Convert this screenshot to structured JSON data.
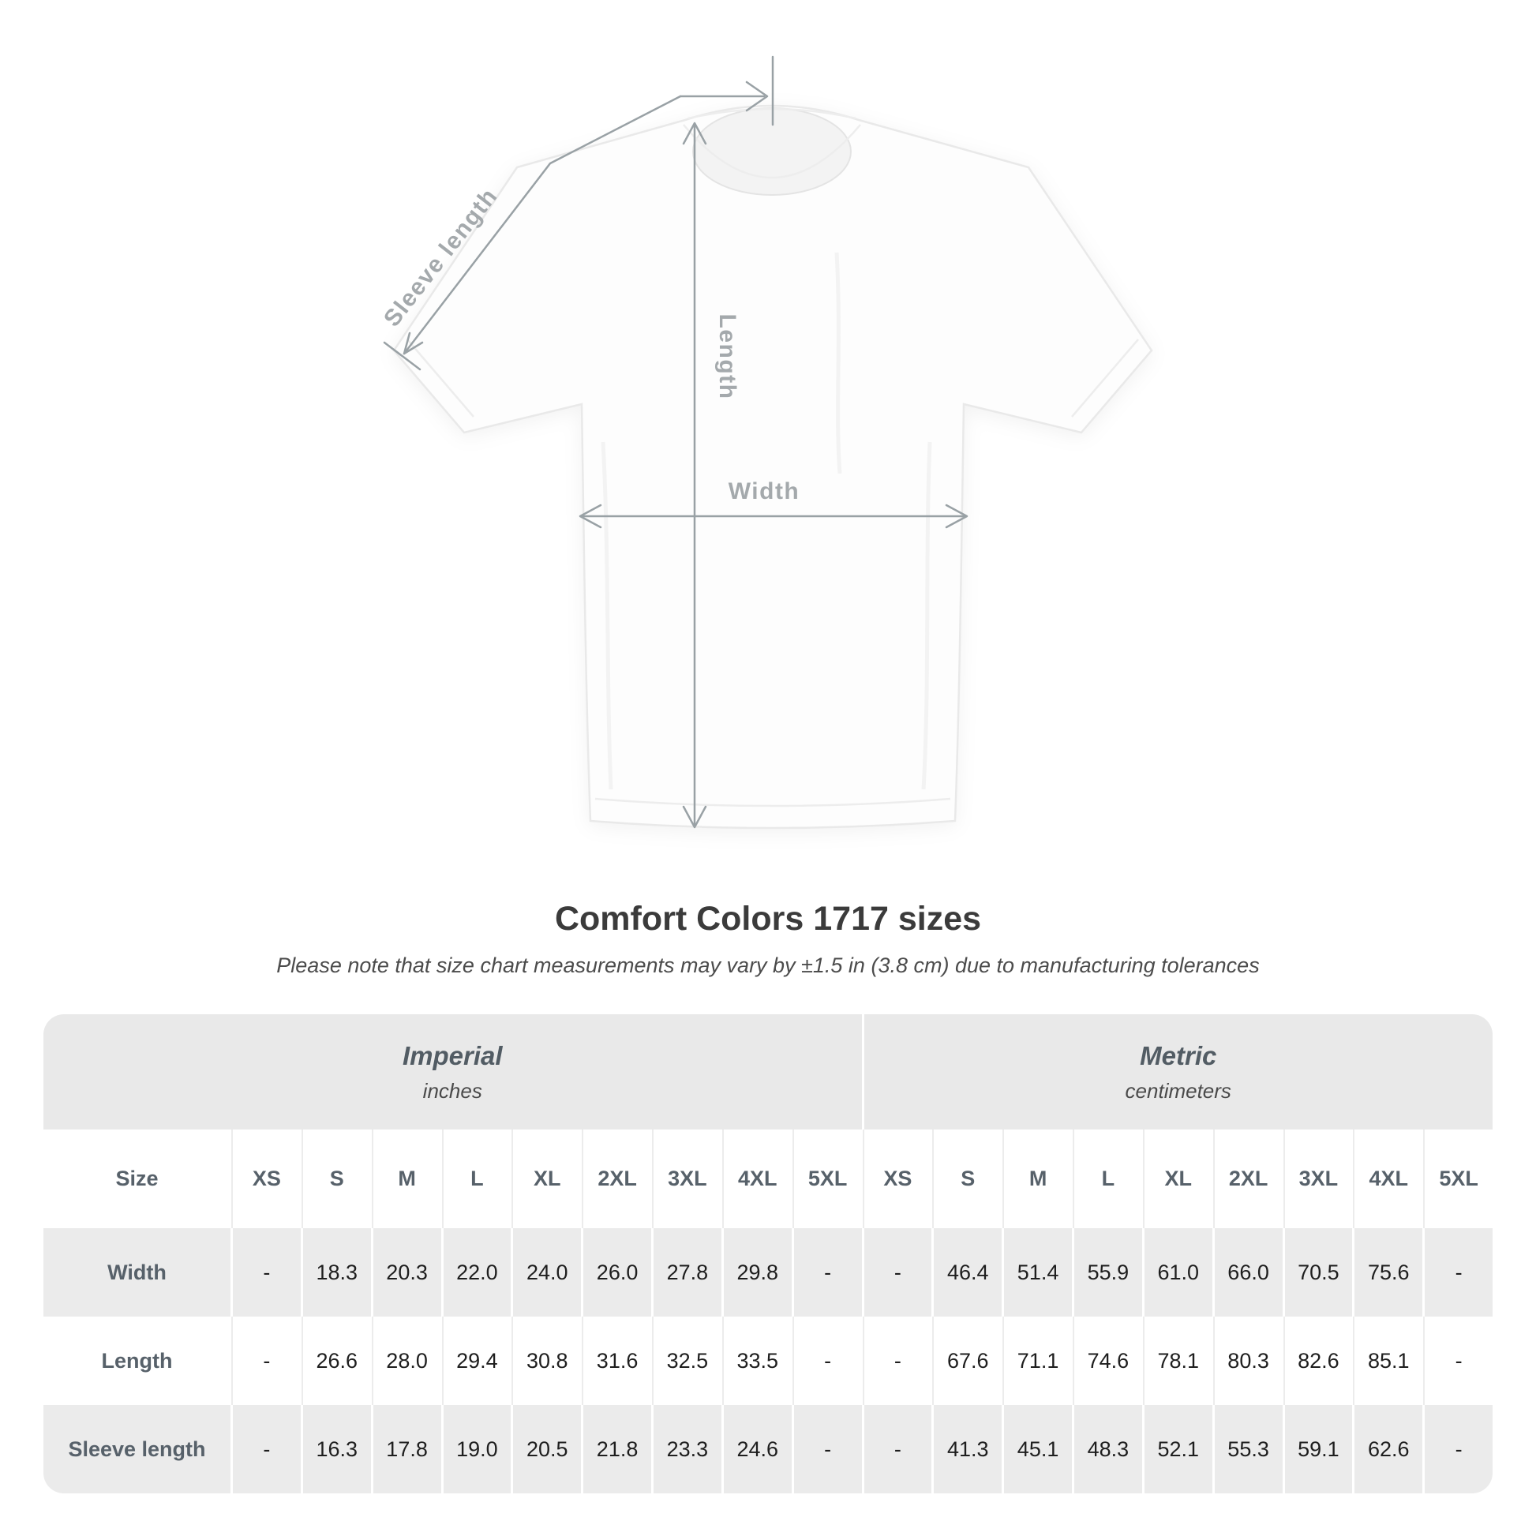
{
  "title": "Comfort Colors 1717 sizes",
  "note": "Please note that size chart measurements may vary by ±1.5 in (3.8 cm) due to manufacturing tolerances",
  "diagram": {
    "sleeve_length_label": "Sleeve length",
    "length_label": "Length",
    "width_label": "Width",
    "line_color": "#99a1a5",
    "label_color": "#a4a9ac"
  },
  "chart_data": {
    "type": "table",
    "size_header": "Size",
    "unit_groups": [
      {
        "label": "Imperial",
        "sublabel": "inches"
      },
      {
        "label": "Metric",
        "sublabel": "centimeters"
      }
    ],
    "sizes": [
      "XS",
      "S",
      "M",
      "L",
      "XL",
      "2XL",
      "3XL",
      "4XL",
      "5XL"
    ],
    "rows": [
      {
        "label": "Width",
        "imperial": [
          "-",
          "18.3",
          "20.3",
          "22.0",
          "24.0",
          "26.0",
          "27.8",
          "29.8",
          "-"
        ],
        "metric": [
          "-",
          "46.4",
          "51.4",
          "55.9",
          "61.0",
          "66.0",
          "70.5",
          "75.6",
          "-"
        ]
      },
      {
        "label": "Length",
        "imperial": [
          "-",
          "26.6",
          "28.0",
          "29.4",
          "30.8",
          "31.6",
          "32.5",
          "33.5",
          "-"
        ],
        "metric": [
          "-",
          "67.6",
          "71.1",
          "74.6",
          "78.1",
          "80.3",
          "82.6",
          "85.1",
          "-"
        ]
      },
      {
        "label": "Sleeve length",
        "imperial": [
          "-",
          "16.3",
          "17.8",
          "19.0",
          "20.5",
          "21.8",
          "23.3",
          "24.6",
          "-"
        ],
        "metric": [
          "-",
          "41.3",
          "45.1",
          "48.3",
          "52.1",
          "55.3",
          "59.1",
          "62.6",
          "-"
        ]
      }
    ],
    "colors": {
      "band_bg": "#e9e9e9",
      "stripe_bg": "#ebebeb",
      "header_text": "#57616a",
      "value_text": "#1e1e1e"
    }
  }
}
